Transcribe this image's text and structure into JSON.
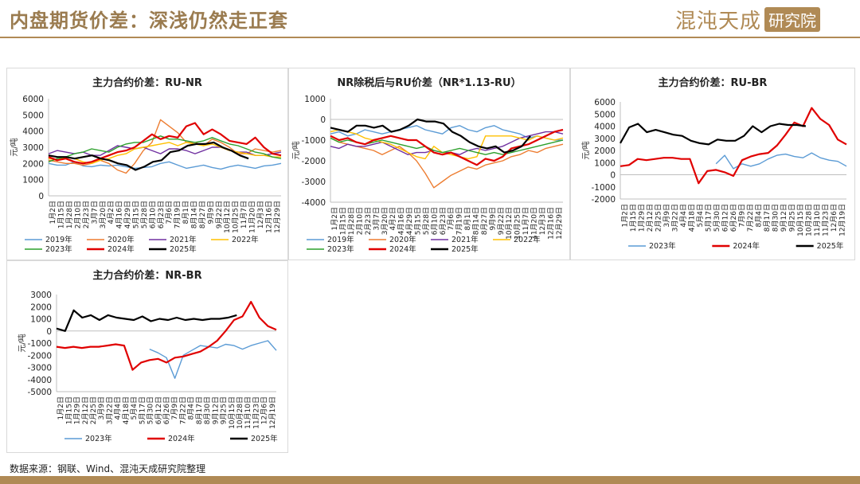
{
  "header": {
    "title": "内盘期货价差：深浅仍然走正套",
    "logo_text": "混沌天成",
    "logo_box": "研究院"
  },
  "footer": {
    "source": "数据来源：钢联、Wind、混沌天成研究院整理"
  },
  "colors": {
    "brand": "#b08a55",
    "2019年": "#5b9bd5",
    "2020年": "#ed7d31",
    "2021年": "#7030a0",
    "2022年": "#ffc000",
    "2023年": "#2ca02c",
    "2024年": "#e00000",
    "2025年": "#000000",
    "2023年_blue": "#5b9bd5"
  },
  "chart_data": [
    {
      "type": "line",
      "title": "主力合约价差：RU-NR",
      "ylabel": "元/吨",
      "ylim": [
        0,
        6000
      ],
      "yticks": [
        0,
        1000,
        2000,
        3000,
        4000,
        5000,
        6000
      ],
      "xticklabels": [
        "1月2日",
        "1月15日",
        "1月28日",
        "2月10日",
        "2月23日",
        "3月7日",
        "3月20日",
        "4月2日",
        "4月16日",
        "4月29日",
        "5月15日",
        "5月28日",
        "6月10日",
        "6月23日",
        "7月6日",
        "7月19日",
        "8月1日",
        "8月14日",
        "8月27日",
        "9月9日",
        "9月22日",
        "10月12日",
        "10月25日",
        "11月7日",
        "11月20日",
        "12月3日",
        "12月16日",
        "12月29日"
      ],
      "series": [
        {
          "name": "2019年",
          "color": "#5b9bd5",
          "end": 1.0,
          "values": [
            2000,
            1900,
            1900,
            2100,
            1850,
            1800,
            1900,
            1850,
            1900,
            1800,
            1700,
            1750,
            1800,
            2000,
            2100,
            1900,
            1700,
            1800,
            1900,
            1750,
            1650,
            1800,
            1900,
            1800,
            1700,
            1850,
            1900,
            2000
          ]
        },
        {
          "name": "2020年",
          "color": "#ed7d31",
          "end": 1.0,
          "values": [
            2200,
            2100,
            2000,
            2000,
            1900,
            2000,
            2200,
            2000,
            1600,
            1400,
            2000,
            2800,
            3300,
            4700,
            4300,
            3900,
            3300,
            3300,
            3100,
            3500,
            3300,
            3000,
            2600,
            2600,
            2900,
            2800,
            2700,
            2800
          ]
        },
        {
          "name": "2021年",
          "color": "#7030a0",
          "end": 1.0,
          "values": [
            2600,
            2800,
            2700,
            2600,
            2700,
            2500,
            2500,
            2800,
            3100,
            3000,
            2900,
            3000,
            2800,
            2600,
            2900,
            2900,
            2800,
            2600,
            2800,
            3000,
            3000,
            2800,
            2700,
            2700,
            2500,
            2500,
            2600,
            2700
          ]
        },
        {
          "name": "2022年",
          "color": "#ffc000",
          "end": 1.0,
          "values": [
            2300,
            2200,
            2400,
            2300,
            2100,
            2000,
            2200,
            2300,
            2500,
            2600,
            2900,
            3000,
            3100,
            3200,
            3300,
            3100,
            3300,
            3200,
            3100,
            3200,
            3000,
            2800,
            2700,
            2600,
            2500,
            2500,
            2400,
            2400
          ]
        },
        {
          "name": "2023年",
          "color": "#2ca02c",
          "end": 1.0,
          "values": [
            2100,
            2300,
            2400,
            2600,
            2700,
            2900,
            2800,
            2700,
            3000,
            3200,
            3300,
            3300,
            3500,
            3700,
            3500,
            3500,
            3400,
            3300,
            3400,
            3600,
            3400,
            3200,
            3100,
            2900,
            2700,
            2600,
            2400,
            2300
          ]
        },
        {
          "name": "2024年",
          "color": "#e00000",
          "end": 1.0,
          "values": [
            2400,
            2200,
            2300,
            2100,
            2000,
            2100,
            2300,
            2500,
            2700,
            2800,
            3000,
            3400,
            3800,
            3500,
            3700,
            3600,
            4300,
            4500,
            3800,
            4100,
            3800,
            3400,
            3300,
            3200,
            3600,
            3000,
            2600,
            2500
          ]
        },
        {
          "name": "2025年",
          "color": "#000000",
          "end": 0.86,
          "values": [
            2500,
            2400,
            2400,
            2300,
            2400,
            2500,
            2300,
            2200,
            2000,
            1900,
            1600,
            1800,
            2100,
            2200,
            2700,
            2800,
            3100,
            3200,
            3200,
            3300,
            3000,
            2800,
            2500,
            2300
          ]
        }
      ]
    },
    {
      "type": "line",
      "title": "NR除税后与RU价差（NR*1.13-RU）",
      "ylabel": "元/吨",
      "ylim": [
        -4000,
        1000
      ],
      "yticks": [
        -4000,
        -3000,
        -2000,
        -1000,
        0,
        1000
      ],
      "xticklabels": [
        "1月2日",
        "1月15日",
        "1月28日",
        "2月10日",
        "2月23日",
        "3月7日",
        "3月20日",
        "4月2日",
        "4月16日",
        "4月29日",
        "5月15日",
        "5月28日",
        "6月10日",
        "6月23日",
        "7月6日",
        "7月19日",
        "8月1日",
        "8月14日",
        "8月27日",
        "9月9日",
        "9月22日",
        "10月12日",
        "10月25日",
        "11月7日",
        "11月20日",
        "12月3日",
        "12月16日",
        "12月29日"
      ],
      "series": [
        {
          "name": "2019年",
          "color": "#5b9bd5",
          "end": 1.0,
          "values": [
            -700,
            -600,
            -800,
            -700,
            -500,
            -600,
            -700,
            -600,
            -500,
            -400,
            -300,
            -500,
            -600,
            -700,
            -400,
            -300,
            -500,
            -600,
            -400,
            -300,
            -500,
            -600,
            -700,
            -900,
            -800,
            -900,
            -1000,
            -1000
          ]
        },
        {
          "name": "2020年",
          "color": "#ed7d31",
          "end": 1.0,
          "values": [
            -900,
            -1100,
            -1200,
            -1300,
            -1400,
            -1500,
            -1700,
            -1500,
            -1300,
            -1600,
            -2000,
            -2600,
            -3300,
            -3000,
            -2700,
            -2500,
            -2300,
            -2400,
            -2200,
            -2100,
            -2000,
            -1800,
            -1700,
            -1500,
            -1600,
            -1400,
            -1300,
            -1200
          ]
        },
        {
          "name": "2021年",
          "color": "#7030a0",
          "end": 1.0,
          "values": [
            -1300,
            -1400,
            -1200,
            -1300,
            -1300,
            -1200,
            -1100,
            -1300,
            -1500,
            -1700,
            -1600,
            -1600,
            -1500,
            -1600,
            -1600,
            -1700,
            -1500,
            -1400,
            -1500,
            -1400,
            -1300,
            -1100,
            -900,
            -800,
            -700,
            -600,
            -600,
            -700
          ]
        },
        {
          "name": "2022年",
          "color": "#ffc000",
          "end": 1.0,
          "values": [
            -600,
            -500,
            -600,
            -700,
            -900,
            -1000,
            -1100,
            -1200,
            -1400,
            -1600,
            -1800,
            -1900,
            -1300,
            -1600,
            -1700,
            -1800,
            -1900,
            -1800,
            -800,
            -800,
            -800,
            -800,
            -900,
            -1000,
            -800,
            -900,
            -1000,
            -900
          ]
        },
        {
          "name": "2023年",
          "color": "#2ca02c",
          "end": 1.0,
          "values": [
            -900,
            -1100,
            -1000,
            -1100,
            -1200,
            -1100,
            -1000,
            -1100,
            -1200,
            -1300,
            -1400,
            -1300,
            -1500,
            -1600,
            -1500,
            -1400,
            -1500,
            -1600,
            -1700,
            -1600,
            -1700,
            -1600,
            -1500,
            -1400,
            -1300,
            -1200,
            -1100,
            -1000
          ]
        },
        {
          "name": "2024年",
          "color": "#e00000",
          "end": 1.0,
          "values": [
            -800,
            -1000,
            -900,
            -1100,
            -1200,
            -1000,
            -900,
            -800,
            -900,
            -1000,
            -1000,
            -1300,
            -1600,
            -1700,
            -1600,
            -1800,
            -2000,
            -2200,
            -1900,
            -2000,
            -1800,
            -1400,
            -1300,
            -1200,
            -1000,
            -800,
            -600,
            -500
          ]
        },
        {
          "name": "2025年",
          "color": "#000000",
          "end": 0.86,
          "values": [
            -400,
            -500,
            -600,
            -300,
            -300,
            -400,
            -300,
            -600,
            -500,
            -300,
            0,
            -100,
            -100,
            -200,
            -600,
            -800,
            -1100,
            -1300,
            -1400,
            -1300,
            -1600,
            -1500,
            -1300,
            -800
          ]
        }
      ]
    },
    {
      "type": "line",
      "title": "主力合约价差：RU-BR",
      "ylabel": "元/吨",
      "ylim": [
        -2000,
        6000
      ],
      "yticks": [
        -2000,
        -1000,
        0,
        1000,
        2000,
        3000,
        4000,
        5000,
        6000
      ],
      "xticklabels": [
        "1月2日",
        "1月15日",
        "1月29日",
        "2月12日",
        "2月25日",
        "3月9日",
        "3月22日",
        "4月4日",
        "4月18日",
        "5月4日",
        "5月17日",
        "5月30日",
        "6月12日",
        "6月26日",
        "7月9日",
        "7月22日",
        "8月4日",
        "8月17日",
        "8月30日",
        "9月12日",
        "9月25日",
        "10月15日",
        "10月28日",
        "11月10日",
        "11月23日",
        "12月6日",
        "12月19日"
      ],
      "series": [
        {
          "name": "2023年",
          "color": "#5b9bd5",
          "end": 1.0,
          "gap": [
            0,
            0.42
          ],
          "values": [
            null,
            null,
            null,
            null,
            null,
            null,
            null,
            null,
            null,
            null,
            null,
            900,
            1600,
            500,
            900,
            700,
            900,
            1300,
            1600,
            1700,
            1500,
            1400,
            1800,
            1400,
            1200,
            1100,
            700
          ]
        },
        {
          "name": "2024年",
          "color": "#e00000",
          "end": 1.0,
          "values": [
            700,
            800,
            1300,
            1200,
            1300,
            1400,
            1400,
            1300,
            1300,
            -700,
            300,
            400,
            200,
            -100,
            1200,
            1500,
            1700,
            1800,
            2400,
            3300,
            4300,
            4000,
            5500,
            4600,
            4100,
            2900,
            2500
          ]
        },
        {
          "name": "2025年",
          "color": "#000000",
          "end": 0.82,
          "values": [
            2600,
            3900,
            4200,
            3500,
            3700,
            3500,
            3300,
            3200,
            2800,
            2600,
            2500,
            2900,
            2800,
            2800,
            3200,
            4000,
            3500,
            4000,
            4200,
            4100,
            4100,
            4000
          ]
        }
      ]
    },
    {
      "type": "line",
      "title": "主力合约价差：NR-BR",
      "ylabel": "元/吨",
      "ylim": [
        -5000,
        3000
      ],
      "yticks": [
        -5000,
        -4000,
        -3000,
        -2000,
        -1000,
        0,
        1000,
        2000,
        3000
      ],
      "xticklabels": [
        "1月2日",
        "1月15日",
        "1月29日",
        "2月12日",
        "2月25日",
        "3月9日",
        "3月22日",
        "4月4日",
        "4月18日",
        "5月4日",
        "5月17日",
        "5月30日",
        "6月12日",
        "6月26日",
        "7月9日",
        "7月22日",
        "8月4日",
        "8月17日",
        "8月30日",
        "9月12日",
        "9月25日",
        "10月15日",
        "10月28日",
        "11月10日",
        "11月23日",
        "12月6日",
        "12月19日"
      ],
      "series": [
        {
          "name": "2023年",
          "color": "#5b9bd5",
          "end": 1.0,
          "values": [
            null,
            null,
            null,
            null,
            null,
            null,
            null,
            null,
            null,
            null,
            null,
            -1500,
            -1800,
            -2200,
            -3900,
            -2000,
            -1600,
            -1200,
            -1300,
            -1400,
            -1100,
            -1200,
            -1500,
            -1200,
            -1000,
            -800,
            -1600
          ]
        },
        {
          "name": "2024年",
          "color": "#e00000",
          "end": 1.0,
          "values": [
            -1300,
            -1400,
            -1300,
            -1400,
            -1300,
            -1300,
            -1200,
            -1100,
            -1200,
            -3200,
            -2600,
            -2400,
            -2300,
            -2600,
            -2200,
            -2100,
            -1900,
            -1700,
            -1300,
            -800,
            0,
            900,
            1200,
            2400,
            1100,
            400,
            100
          ]
        },
        {
          "name": "2025年",
          "color": "#000000",
          "end": 0.82,
          "values": [
            200,
            0,
            1700,
            1100,
            1300,
            900,
            1300,
            1100,
            1000,
            900,
            1200,
            800,
            1000,
            900,
            1100,
            900,
            1000,
            900,
            1000,
            1000,
            1100,
            1300
          ]
        }
      ]
    }
  ]
}
